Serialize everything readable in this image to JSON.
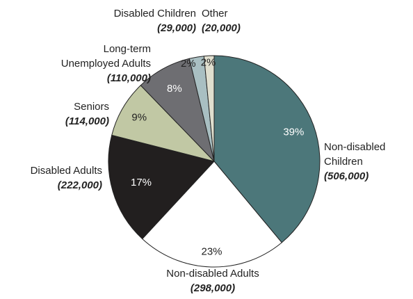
{
  "chart_data": {
    "type": "pie",
    "title": "",
    "slices": [
      {
        "label": "Non-disabled Children",
        "label_lines": [
          "Non-disabled",
          "Children"
        ],
        "count": "(506,000)",
        "value": 506000,
        "percent_label": "39%",
        "color": "#4c777a",
        "pct_color": "#ffffff"
      },
      {
        "label": "Non-disabled Adults",
        "label_lines": [
          "Non-disabled Adults"
        ],
        "count": "(298,000)",
        "value": 298000,
        "percent_label": "23%",
        "color": "#ffffff",
        "pct_color": "#222222"
      },
      {
        "label": "Disabled Adults",
        "label_lines": [
          "Disabled Adults"
        ],
        "count": "(222,000)",
        "value": 222000,
        "percent_label": "17%",
        "color": "#221f1f",
        "pct_color": "#ffffff"
      },
      {
        "label": "Seniors",
        "label_lines": [
          "Seniors"
        ],
        "count": "(114,000)",
        "value": 114000,
        "percent_label": "9%",
        "color": "#c1c8a4",
        "pct_color": "#222222"
      },
      {
        "label": "Long-term Unemployed Adults",
        "label_lines": [
          "Long-term",
          "Unemployed Adults"
        ],
        "count": "(110,000)",
        "value": 110000,
        "percent_label": "8%",
        "color": "#6e6e72",
        "pct_color": "#ffffff"
      },
      {
        "label": "Disabled Children",
        "label_lines": [
          "Disabled Children"
        ],
        "count": "(29,000)",
        "value": 29000,
        "percent_label": "2%",
        "color": "#a9bfc2",
        "pct_color": "#222222"
      },
      {
        "label": "Other",
        "label_lines": [
          "Other"
        ],
        "count": "(20,000)",
        "value": 20000,
        "percent_label": "2%",
        "color": "#e0dfcf",
        "pct_color": "#222222"
      }
    ]
  }
}
